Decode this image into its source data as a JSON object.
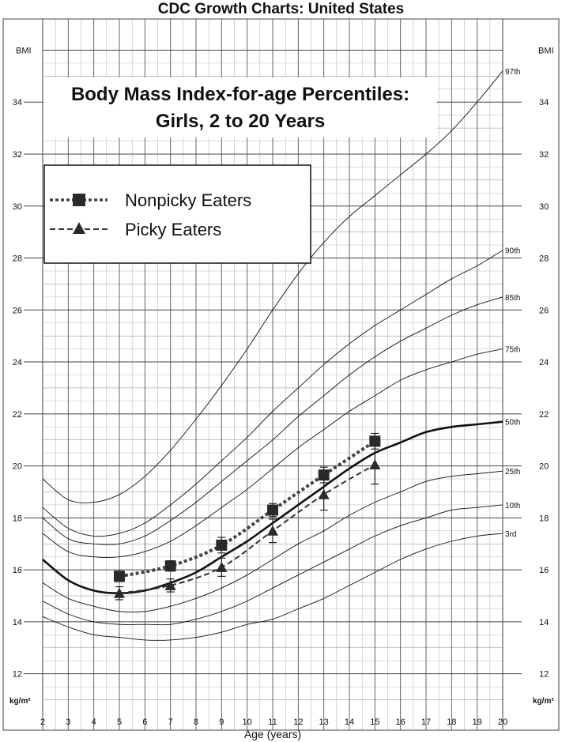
{
  "page_title": "CDC Growth Charts: United States",
  "chart_data": {
    "type": "line",
    "title": "Body Mass Index-for-age Percentiles:",
    "subtitle": "Girls, 2 to 20 Years",
    "xlabel": "Age (years)",
    "ylabel": "BMI",
    "unit_label": "kg/m²",
    "xlim": [
      2,
      20
    ],
    "ylim": [
      10.5,
      36.5
    ],
    "x_ticks": [
      2,
      3,
      4,
      5,
      6,
      7,
      8,
      9,
      10,
      11,
      12,
      13,
      14,
      15,
      16,
      17,
      18,
      19,
      20
    ],
    "y_ticks": [
      12,
      14,
      16,
      18,
      20,
      22,
      24,
      26,
      28,
      30,
      32,
      34
    ],
    "grid": true,
    "legend_position": "top-left",
    "percentile_curves": [
      {
        "name": "97th",
        "x": [
          2,
          3,
          4,
          5,
          6,
          7,
          8,
          9,
          10,
          11,
          12,
          13,
          14,
          15,
          16,
          17,
          18,
          19,
          20
        ],
        "y": [
          19.5,
          18.7,
          18.6,
          18.9,
          19.6,
          20.6,
          21.8,
          23.1,
          24.5,
          26.0,
          27.4,
          28.6,
          29.6,
          30.4,
          31.2,
          32.0,
          32.9,
          34.0,
          35.2
        ]
      },
      {
        "name": "90th",
        "x": [
          2,
          3,
          4,
          5,
          6,
          7,
          8,
          9,
          10,
          11,
          12,
          13,
          14,
          15,
          16,
          17,
          18,
          19,
          20
        ],
        "y": [
          18.4,
          17.6,
          17.3,
          17.4,
          17.8,
          18.5,
          19.3,
          20.2,
          21.1,
          22.1,
          23.0,
          23.9,
          24.7,
          25.4,
          26.0,
          26.6,
          27.2,
          27.7,
          28.3
        ]
      },
      {
        "name": "85th",
        "x": [
          2,
          3,
          4,
          5,
          6,
          7,
          8,
          9,
          10,
          11,
          12,
          13,
          14,
          15,
          16,
          17,
          18,
          19,
          20
        ],
        "y": [
          18.0,
          17.2,
          17.0,
          17.0,
          17.3,
          17.9,
          18.6,
          19.4,
          20.2,
          21.0,
          21.9,
          22.7,
          23.5,
          24.2,
          24.8,
          25.3,
          25.8,
          26.2,
          26.5
        ]
      },
      {
        "name": "75th",
        "x": [
          2,
          3,
          4,
          5,
          6,
          7,
          8,
          9,
          10,
          11,
          12,
          13,
          14,
          15,
          16,
          17,
          18,
          19,
          20
        ],
        "y": [
          17.4,
          16.7,
          16.5,
          16.5,
          16.7,
          17.1,
          17.7,
          18.4,
          19.1,
          19.9,
          20.7,
          21.4,
          22.1,
          22.7,
          23.3,
          23.7,
          24.0,
          24.3,
          24.5
        ]
      },
      {
        "name": "50th",
        "x": [
          2,
          3,
          4,
          5,
          6,
          7,
          8,
          9,
          10,
          11,
          12,
          13,
          14,
          15,
          16,
          17,
          18,
          19,
          20
        ],
        "y": [
          16.4,
          15.6,
          15.2,
          15.1,
          15.2,
          15.5,
          15.9,
          16.5,
          17.1,
          17.8,
          18.5,
          19.2,
          19.9,
          20.5,
          20.9,
          21.3,
          21.5,
          21.6,
          21.7
        ]
      },
      {
        "name": "25th",
        "x": [
          2,
          3,
          4,
          5,
          6,
          7,
          8,
          9,
          10,
          11,
          12,
          13,
          14,
          15,
          16,
          17,
          18,
          19,
          20
        ],
        "y": [
          15.5,
          14.9,
          14.6,
          14.4,
          14.4,
          14.6,
          14.9,
          15.3,
          15.8,
          16.4,
          17.0,
          17.5,
          18.1,
          18.6,
          19.0,
          19.4,
          19.6,
          19.7,
          19.8
        ]
      },
      {
        "name": "10th",
        "x": [
          2,
          3,
          4,
          5,
          6,
          7,
          8,
          9,
          10,
          11,
          12,
          13,
          14,
          15,
          16,
          17,
          18,
          19,
          20
        ],
        "y": [
          14.8,
          14.3,
          14.0,
          13.9,
          13.9,
          13.9,
          14.1,
          14.4,
          14.8,
          15.3,
          15.8,
          16.3,
          16.8,
          17.3,
          17.7,
          18.0,
          18.3,
          18.4,
          18.5
        ]
      },
      {
        "name": "3rd",
        "x": [
          2,
          3,
          4,
          5,
          6,
          7,
          8,
          9,
          10,
          11,
          12,
          13,
          14,
          15,
          16,
          17,
          18,
          19,
          20
        ],
        "y": [
          14.2,
          13.8,
          13.5,
          13.4,
          13.3,
          13.3,
          13.4,
          13.6,
          13.9,
          14.1,
          14.5,
          14.9,
          15.4,
          15.9,
          16.4,
          16.8,
          17.1,
          17.3,
          17.4
        ]
      }
    ],
    "series": [
      {
        "name": "Nonpicky Eaters",
        "marker": "square",
        "x": [
          5,
          7,
          9,
          11,
          13,
          15
        ],
        "y": [
          15.75,
          16.15,
          16.95,
          18.3,
          19.65,
          20.95
        ],
        "err": [
          0.2,
          0.2,
          0.3,
          0.25,
          0.3,
          0.3
        ]
      },
      {
        "name": "Picky Eaters",
        "marker": "triangle",
        "x": [
          5,
          7,
          9,
          11,
          13,
          15
        ],
        "y": [
          15.1,
          15.4,
          16.1,
          17.5,
          18.9,
          20.05
        ],
        "err": [
          0.25,
          0.25,
          0.35,
          0.45,
          0.6,
          0.75
        ]
      }
    ]
  }
}
